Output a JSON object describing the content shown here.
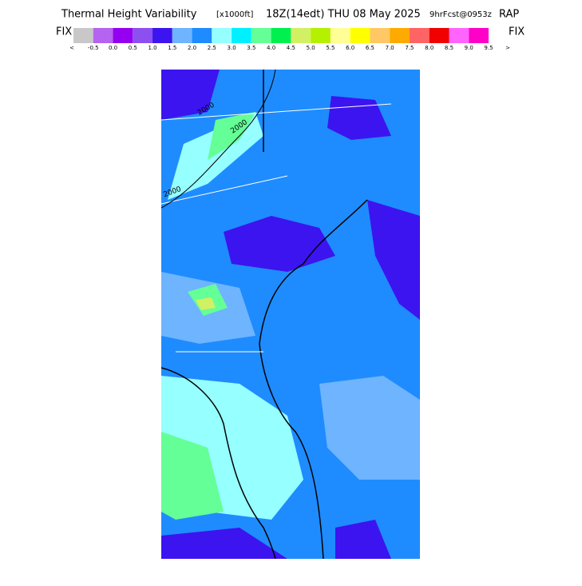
{
  "header": {
    "title_parts": [
      "Thermal Height Variability",
      "[x1000ft]",
      "18Z(14edt) THU 08 May 2025",
      "9hrFcst@0953z",
      "RAP"
    ]
  },
  "legend": {
    "left_label": "FIX",
    "right_label": "FIX",
    "colors": [
      "#c8c8c8",
      "#b464f0",
      "#9600f0",
      "#8c50f0",
      "#3c14f0",
      "#6eb4ff",
      "#1e8cff",
      "#96ffff",
      "#00f0ff",
      "#64ff96",
      "#00f050",
      "#d2f064",
      "#b4f000",
      "#ffff96",
      "#ffff00",
      "#ffc864",
      "#ffaa00",
      "#ff6464",
      "#f00000",
      "#ff64ff",
      "#ff00c8"
    ],
    "labels": [
      "<",
      "-0.5",
      "0.0",
      "0.5",
      "1.0",
      "1.5",
      "2.0",
      "2.5",
      "3.0",
      "3.5",
      "4.0",
      "4.5",
      "5.0",
      "5.5",
      "6.0",
      "6.5",
      "7.0",
      "7.5",
      "8.0",
      "8.5",
      "9.0",
      "9.5",
      ">"
    ]
  },
  "map": {
    "contour_labels": [
      "2000",
      "2000",
      "2000"
    ]
  }
}
